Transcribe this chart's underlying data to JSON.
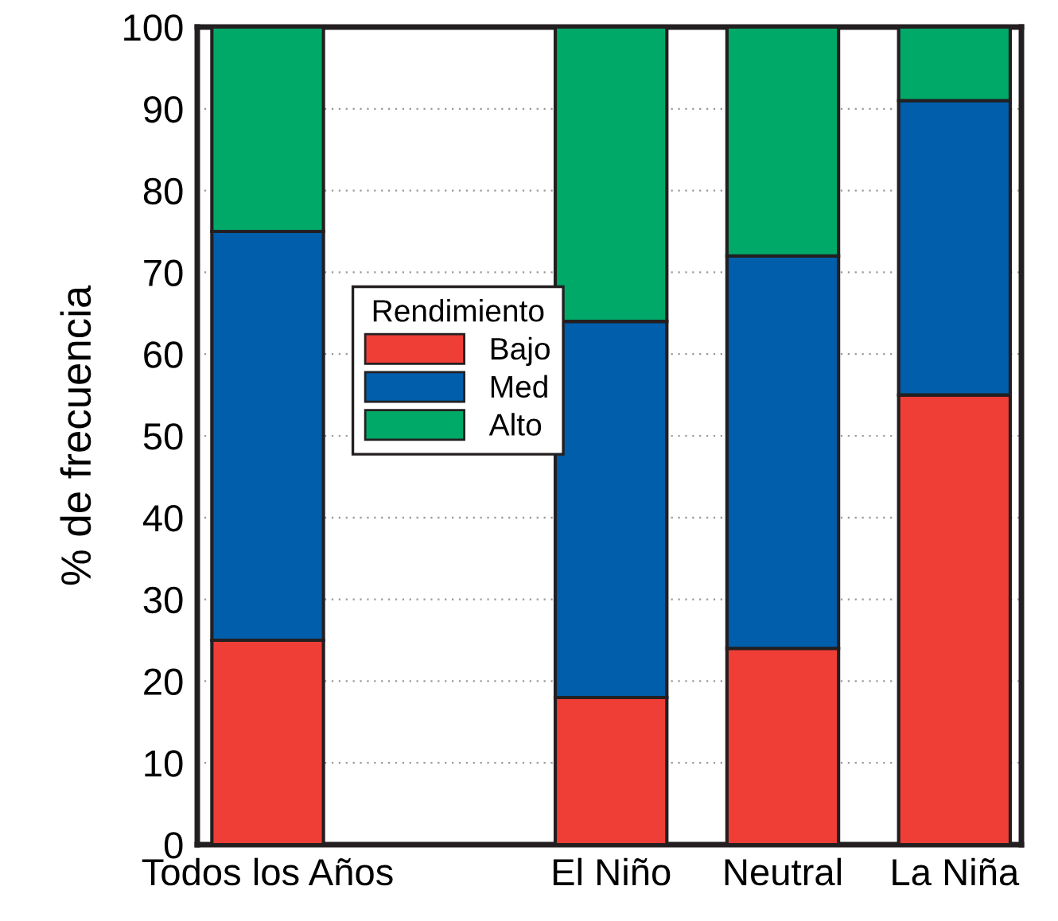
{
  "chart_data": {
    "type": "bar",
    "stacked": true,
    "ylabel": "% de frecuencia",
    "legend_title": "Rendimiento",
    "legend": "center left",
    "grid": "y",
    "categories": [
      "Todos los Años",
      null,
      "El Niño",
      "Neutral",
      "La Niña"
    ],
    "series": [
      {
        "name": "Bajo",
        "color": "#ee3e36",
        "values": [
          25,
          null,
          18,
          24,
          55
        ]
      },
      {
        "name": "Med",
        "color": "#005eab",
        "values": [
          50,
          null,
          46,
          48,
          36
        ]
      },
      {
        "name": "Alto",
        "color": "#00a968",
        "values": [
          25,
          null,
          36,
          28,
          9
        ]
      }
    ],
    "ylim": [
      0,
      100
    ],
    "yticks": [
      0,
      10,
      20,
      30,
      40,
      50,
      60,
      70,
      80,
      90,
      100
    ]
  }
}
